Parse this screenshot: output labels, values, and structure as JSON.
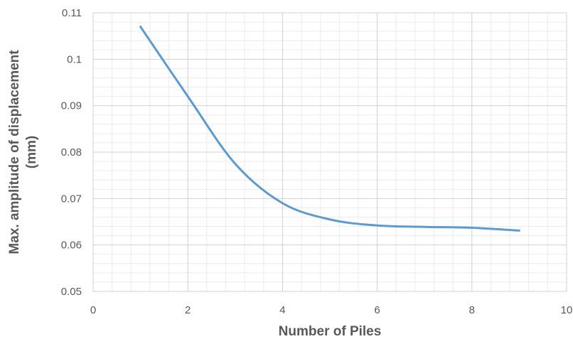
{
  "chart_data": {
    "type": "line",
    "title": "",
    "xlabel": "Number of Piles",
    "ylabel_lines": [
      "Max. amplitude of displacement",
      "(mm)"
    ],
    "xlim": [
      0,
      10
    ],
    "ylim": [
      0.05,
      0.11
    ],
    "x_ticks": [
      0,
      2,
      4,
      6,
      8,
      10
    ],
    "x_tick_labels": [
      "0",
      "2",
      "4",
      "6",
      "8",
      "10"
    ],
    "y_ticks": [
      0.05,
      0.06,
      0.07,
      0.08,
      0.09,
      0.1,
      0.11
    ],
    "y_tick_labels": [
      "0.05",
      "0.06",
      "0.07",
      "0.08",
      "0.09",
      "0.1",
      "0.11"
    ],
    "grid": true,
    "minor_grid": true,
    "legend": "none",
    "smooth": true,
    "series": [
      {
        "color": "#5b9bd5",
        "x": [
          1,
          2,
          3,
          4,
          5,
          6,
          7,
          8,
          9
        ],
        "y": [
          0.107,
          0.092,
          0.0775,
          0.069,
          0.0655,
          0.0642,
          0.0639,
          0.0637,
          0.0631
        ]
      }
    ]
  }
}
